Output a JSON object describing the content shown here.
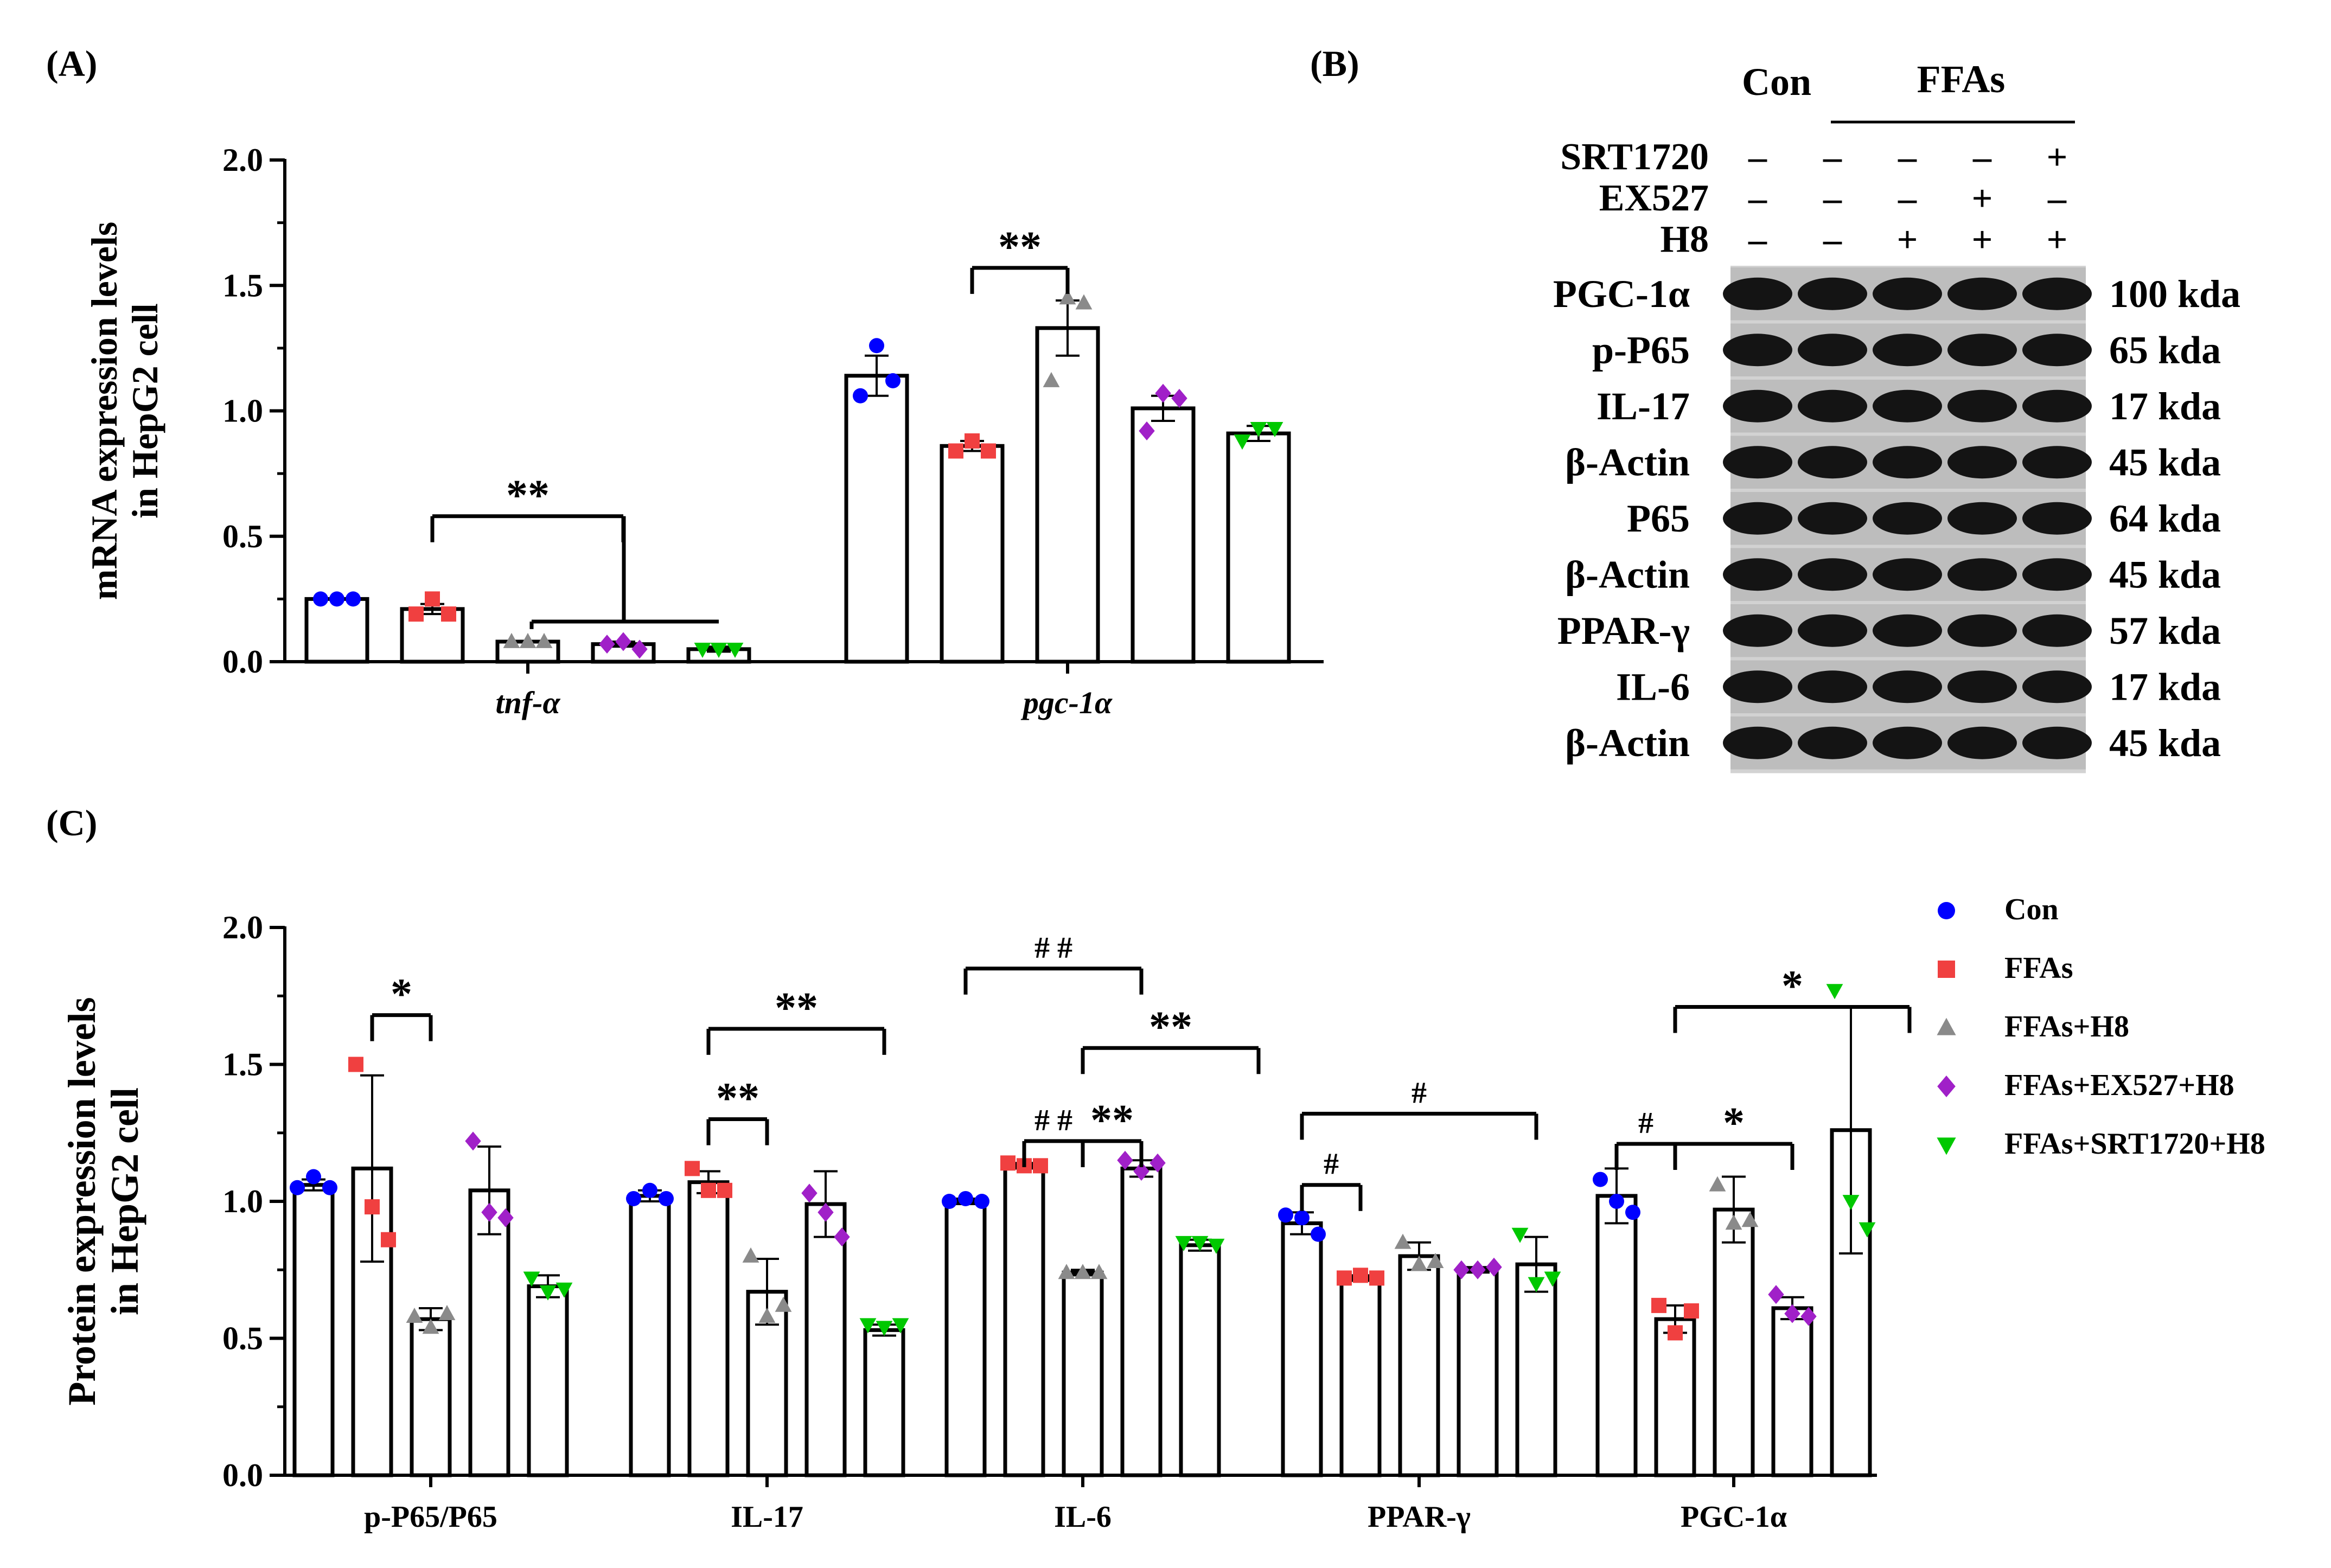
{
  "panel_labels": {
    "a": "(A)",
    "b": "(B)",
    "c": "(C)"
  },
  "colors": {
    "Con": "#0000ff",
    "FFAs": "#f04040",
    "FFAs+H8": "#8a8a8a",
    "FFAs+EX527+H8": "#a020c8",
    "FFAs+SRT1720+H8": "#00c800",
    "axis": "#000000"
  },
  "chart_data": [
    {
      "id": "panelA",
      "type": "bar",
      "ylabel_line1": "mRNA expression levels",
      "ylabel_line2": "in HepG2 cell",
      "ylim": [
        0,
        2.0
      ],
      "yticks": [
        "0.0",
        "0.5",
        "1.0",
        "1.5",
        "2.0"
      ],
      "categories": [
        "tnf-α",
        "pgc-1α"
      ],
      "series": [
        {
          "name": "Con",
          "values": [
            0.25,
            1.14
          ],
          "errors": [
            0.0,
            0.08
          ],
          "points": [
            [
              0.25,
              0.25,
              0.25
            ],
            [
              1.06,
              1.26,
              1.12
            ]
          ]
        },
        {
          "name": "FFAs",
          "values": [
            0.21,
            0.86
          ],
          "errors": [
            0.02,
            0.02
          ],
          "points": [
            [
              0.19,
              0.25,
              0.19
            ],
            [
              0.84,
              0.88,
              0.84
            ]
          ]
        },
        {
          "name": "FFAs+H8",
          "values": [
            0.08,
            1.33
          ],
          "errors": [
            0.0,
            0.11
          ],
          "points": [
            [
              0.08,
              0.08,
              0.08
            ],
            [
              1.12,
              1.45,
              1.43
            ]
          ]
        },
        {
          "name": "FFAs+EX527+H8",
          "values": [
            0.07,
            1.01
          ],
          "errors": [
            0.01,
            0.05
          ],
          "points": [
            [
              0.07,
              0.08,
              0.05
            ],
            [
              0.92,
              1.07,
              1.05
            ]
          ]
        },
        {
          "name": "FFAs+SRT1720+H8",
          "values": [
            0.05,
            0.91
          ],
          "errors": [
            0.01,
            0.03
          ],
          "points": [
            [
              0.05,
              0.05,
              0.05
            ],
            [
              0.88,
              0.93,
              0.93
            ]
          ]
        }
      ],
      "annotations": [
        {
          "text": "**",
          "from": [
            0,
            1
          ],
          "to": [
            0,
            3
          ],
          "y": 0.58
        },
        {
          "text": "**",
          "from": [
            1,
            1
          ],
          "to": [
            1,
            2
          ],
          "y": 1.57
        }
      ]
    },
    {
      "id": "panelC",
      "type": "bar",
      "ylabel_line1": "Protein expression levels",
      "ylabel_line2": "in HepG2 cell",
      "ylim": [
        0,
        2.0
      ],
      "yticks": [
        "0.0",
        "0.5",
        "1.0",
        "1.5",
        "2.0"
      ],
      "categories": [
        "p-P65/P65",
        "IL-17",
        "IL-6",
        "PPAR-γ",
        "PGC-1α"
      ],
      "legend": [
        "Con",
        "FFAs",
        "FFAs+H8",
        "FFAs+EX527+H8",
        "FFAs+SRT1720+H8"
      ],
      "series": [
        {
          "name": "Con",
          "values": [
            1.06,
            1.02,
            1.0,
            0.92,
            1.02
          ],
          "errors": [
            0.02,
            0.02,
            0.01,
            0.04,
            0.1
          ],
          "points": [
            [
              1.05,
              1.09,
              1.05
            ],
            [
              1.01,
              1.04,
              1.01
            ],
            [
              1.0,
              1.01,
              1.0
            ],
            [
              0.95,
              0.94,
              0.88
            ],
            [
              1.08,
              1.0,
              0.96
            ]
          ]
        },
        {
          "name": "FFAs",
          "values": [
            1.12,
            1.07,
            1.13,
            0.72,
            0.57
          ],
          "errors": [
            0.34,
            0.04,
            0.01,
            0.01,
            0.05
          ],
          "points": [
            [
              1.5,
              0.98,
              0.86
            ],
            [
              1.12,
              1.04,
              1.04
            ],
            [
              1.14,
              1.13,
              1.13
            ],
            [
              0.72,
              0.73,
              0.72
            ],
            [
              0.62,
              0.52,
              0.6
            ]
          ]
        },
        {
          "name": "FFAs+H8",
          "values": [
            0.57,
            0.67,
            0.74,
            0.8,
            0.97
          ],
          "errors": [
            0.04,
            0.12,
            0.01,
            0.05,
            0.12
          ],
          "points": [
            [
              0.58,
              0.54,
              0.59
            ],
            [
              0.8,
              0.58,
              0.62
            ],
            [
              0.74,
              0.74,
              0.74
            ],
            [
              0.85,
              0.77,
              0.78
            ],
            [
              1.06,
              0.92,
              0.93
            ]
          ]
        },
        {
          "name": "FFAs+EX527+H8",
          "values": [
            1.04,
            0.99,
            1.12,
            0.75,
            0.61
          ],
          "errors": [
            0.16,
            0.12,
            0.03,
            0.01,
            0.04
          ],
          "points": [
            [
              1.22,
              0.96,
              0.94
            ],
            [
              1.03,
              0.96,
              0.87
            ],
            [
              1.15,
              1.11,
              1.14
            ],
            [
              0.75,
              0.75,
              0.76
            ],
            [
              0.66,
              0.59,
              0.58
            ]
          ]
        },
        {
          "name": "FFAs+SRT1720+H8",
          "values": [
            0.69,
            0.53,
            0.84,
            0.77,
            1.26
          ],
          "errors": [
            0.04,
            0.02,
            0.02,
            0.1,
            0.45
          ],
          "points": [
            [
              0.72,
              0.67,
              0.68
            ],
            [
              0.55,
              0.54,
              0.55
            ],
            [
              0.85,
              0.85,
              0.84
            ],
            [
              0.88,
              0.7,
              0.72
            ],
            [
              1.77,
              1.0,
              0.9
            ]
          ]
        }
      ],
      "annotations": [
        {
          "text": "*",
          "from": [
            0,
            1
          ],
          "to": [
            0,
            2
          ],
          "y": 1.68
        },
        {
          "text": "**",
          "from": [
            1,
            1
          ],
          "to": [
            1,
            4
          ],
          "y": 1.63
        },
        {
          "text": "**",
          "from": [
            1,
            1
          ],
          "to": [
            1,
            2
          ],
          "y": 1.3
        },
        {
          "text": "# #",
          "from": [
            2,
            0
          ],
          "to": [
            2,
            3
          ],
          "y": 1.85
        },
        {
          "text": "**",
          "from": [
            2,
            2
          ],
          "to": [
            2,
            5
          ],
          "y": 1.56
        },
        {
          "text": "# #",
          "from": [
            2,
            1
          ],
          "to": [
            2,
            2
          ],
          "y": 1.22
        },
        {
          "text": "**",
          "from": [
            2,
            2
          ],
          "to": [
            2,
            3
          ],
          "y": 1.22
        },
        {
          "text": "#",
          "from": [
            3,
            0
          ],
          "to": [
            3,
            4
          ],
          "y": 1.32
        },
        {
          "text": "#",
          "from": [
            3,
            0
          ],
          "to": [
            3,
            1
          ],
          "y": 1.06
        },
        {
          "text": "#",
          "from": [
            4,
            0
          ],
          "to": [
            4,
            1
          ],
          "y": 1.21
        },
        {
          "text": "*",
          "from": [
            4,
            1
          ],
          "to": [
            4,
            3
          ],
          "y": 1.21
        },
        {
          "text": "*",
          "from": [
            4,
            1
          ],
          "to": [
            4,
            5
          ],
          "y": 1.71
        }
      ]
    }
  ],
  "western_blot": {
    "group_con": "Con",
    "group_ffas": "FFAs",
    "treatments": [
      {
        "name": "SRT1720",
        "signs": [
          "–",
          "–",
          "–",
          "–",
          "+"
        ]
      },
      {
        "name": "EX527",
        "signs": [
          "–",
          "–",
          "–",
          "+",
          "–"
        ]
      },
      {
        "name": "H8",
        "signs": [
          "–",
          "–",
          "+",
          "+",
          "+"
        ]
      }
    ],
    "bands": [
      {
        "label": "PGC-1α",
        "kda": "100 kda"
      },
      {
        "label": "p-P65",
        "kda": "65 kda"
      },
      {
        "label": "IL-17",
        "kda": "17 kda"
      },
      {
        "label": "β-Actin",
        "kda": "45 kda"
      },
      {
        "label": "P65",
        "kda": "64 kda"
      },
      {
        "label": "β-Actin",
        "kda": "45 kda"
      },
      {
        "label": "PPAR-γ",
        "kda": "57 kda"
      },
      {
        "label": "IL-6",
        "kda": "17 kda"
      },
      {
        "label": "β-Actin",
        "kda": "45 kda"
      }
    ]
  }
}
